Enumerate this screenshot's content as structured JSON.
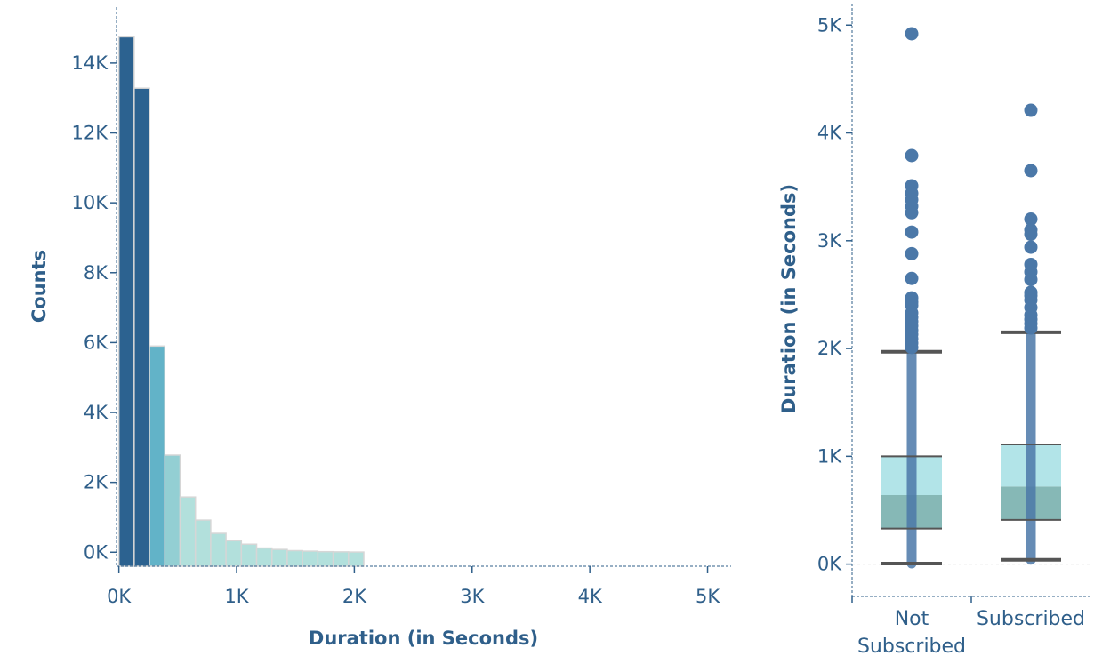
{
  "chart_data": [
    {
      "type": "bar",
      "subtype": "histogram",
      "xlabel": "Duration (in Seconds)",
      "ylabel": "Counts",
      "x_ticks": [
        "0K",
        "1K",
        "2K",
        "3K",
        "4K",
        "5K"
      ],
      "x_tick_values": [
        0,
        1000,
        2000,
        3000,
        4000,
        5000
      ],
      "y_ticks": [
        "0K",
        "2K",
        "4K",
        "6K",
        "8K",
        "10K",
        "12K",
        "14K"
      ],
      "y_tick_values": [
        0,
        2000,
        4000,
        6000,
        8000,
        10000,
        12000,
        14000
      ],
      "xlim": [
        -20,
        5200
      ],
      "ylim": [
        -400,
        15600
      ],
      "bin_width": 130,
      "bin_starts": [
        0,
        130,
        260,
        390,
        520,
        650,
        780,
        910,
        1040,
        1170,
        1300,
        1430,
        1560,
        1690,
        1820,
        1950
      ],
      "values": [
        14750,
        13280,
        5900,
        2780,
        1580,
        920,
        540,
        330,
        230,
        120,
        80,
        45,
        30,
        15,
        10,
        5
      ],
      "colors": [
        "#2c6290",
        "#2c6290",
        "#62b3c8",
        "#93cfd3",
        "#b2e0dc",
        "#b2e0dc",
        "#b2e0dc",
        "#b2e0dc",
        "#b2e0dc",
        "#b2e0dc",
        "#b2e0dc",
        "#b2e0dc",
        "#b2e0dc",
        "#b2e0dc",
        "#b2e0dc",
        "#b2e0dc"
      ],
      "grid": false
    },
    {
      "type": "box",
      "ylabel": "Duration (in Seconds)",
      "y_ticks": [
        "0K",
        "1K",
        "2K",
        "3K",
        "4K",
        "5K"
      ],
      "y_tick_values": [
        0,
        1000,
        2000,
        3000,
        4000,
        5000
      ],
      "ylim": [
        -300,
        5200
      ],
      "categories": [
        "Not Subscribed",
        "Subscribed"
      ],
      "category_lines": [
        [
          "Not",
          "Subscribed"
        ],
        [
          "Subscribed"
        ]
      ],
      "boxes": [
        {
          "whisker_low": 5,
          "q1": 330,
          "median": 640,
          "q3": 1000,
          "whisker_high": 1970,
          "outliers": [
            4920,
            3790,
            3510,
            3440,
            3380,
            3320,
            3260,
            3080,
            2880,
            2650,
            2470,
            2430,
            2400,
            2330,
            2290,
            2250,
            2210,
            2170,
            2130,
            2090,
            2050,
            2010
          ]
        },
        {
          "whisker_low": 40,
          "q1": 410,
          "median": 720,
          "q3": 1110,
          "whisker_high": 2150,
          "outliers": [
            4210,
            3650,
            3200,
            3100,
            3060,
            2940,
            2780,
            2710,
            2640,
            2520,
            2490,
            2450,
            2380,
            2310,
            2270,
            2230,
            2190
          ]
        }
      ],
      "colors": {
        "upper_box": "#b2e4e8",
        "lower_box": "#86b8b6",
        "points": "#4b78a8",
        "whisker": "#555555"
      },
      "grid": false
    }
  ]
}
